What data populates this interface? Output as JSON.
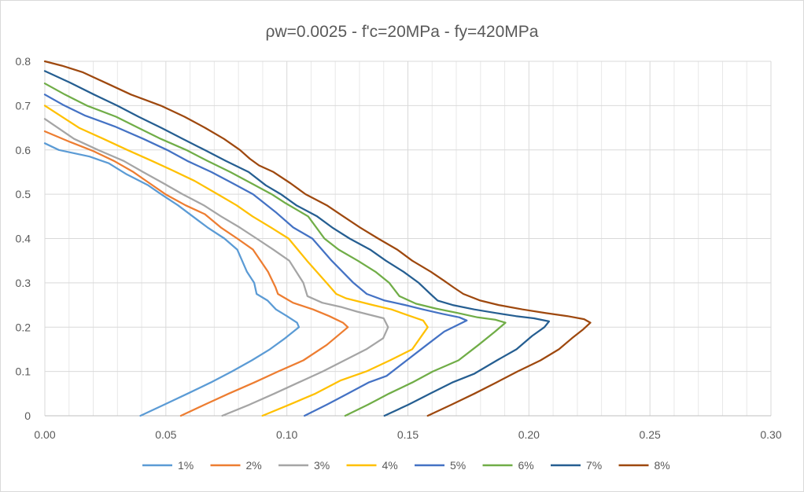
{
  "chart_data": {
    "type": "line",
    "title": "ρw=0.0025 - f'c=20MPa - fy=420MPa",
    "xlabel": "",
    "ylabel": "",
    "xlim": [
      0,
      0.3
    ],
    "ylim": [
      0,
      0.8
    ],
    "x_ticks": [
      "0.00",
      "0.05",
      "0.10",
      "0.15",
      "0.20",
      "0.25",
      "0.30"
    ],
    "y_ticks": [
      "0",
      "0.1",
      "0.2",
      "0.3",
      "0.4",
      "0.5",
      "0.6",
      "0.7",
      "0.8"
    ],
    "grid": true,
    "legend_position": "bottom",
    "series": [
      {
        "name": "1%",
        "color": "#5b9bd5",
        "points": [
          [
            0.0395,
            0
          ],
          [
            0.0493,
            0.025
          ],
          [
            0.059,
            0.05
          ],
          [
            0.0685,
            0.075
          ],
          [
            0.0773,
            0.1
          ],
          [
            0.0855,
            0.125
          ],
          [
            0.093,
            0.15
          ],
          [
            0.0993,
            0.175
          ],
          [
            0.105,
            0.2
          ],
          [
            0.1042,
            0.21
          ],
          [
            0.1,
            0.225
          ],
          [
            0.0955,
            0.24
          ],
          [
            0.092,
            0.26
          ],
          [
            0.0875,
            0.275
          ],
          [
            0.0865,
            0.3
          ],
          [
            0.0835,
            0.325
          ],
          [
            0.0795,
            0.375
          ],
          [
            0.0742,
            0.4
          ],
          [
            0.0672,
            0.425
          ],
          [
            0.0611,
            0.45
          ],
          [
            0.055,
            0.475
          ],
          [
            0.048,
            0.5
          ],
          [
            0.0427,
            0.52
          ],
          [
            0.0338,
            0.545
          ],
          [
            0.0264,
            0.57
          ],
          [
            0.0185,
            0.585
          ],
          [
            0.0058,
            0.6
          ],
          [
            0,
            0.615
          ]
        ]
      },
      {
        "name": "2%",
        "color": "#ed7d31",
        "points": [
          [
            0.0562,
            0
          ],
          [
            0.066,
            0.025
          ],
          [
            0.076,
            0.05
          ],
          [
            0.0865,
            0.075
          ],
          [
            0.0964,
            0.1
          ],
          [
            0.1068,
            0.125
          ],
          [
            0.1165,
            0.16
          ],
          [
            0.1252,
            0.2
          ],
          [
            0.1232,
            0.21
          ],
          [
            0.1175,
            0.225
          ],
          [
            0.1108,
            0.24
          ],
          [
            0.1025,
            0.255
          ],
          [
            0.0963,
            0.275
          ],
          [
            0.0953,
            0.29
          ],
          [
            0.0922,
            0.325
          ],
          [
            0.086,
            0.375
          ],
          [
            0.0795,
            0.4
          ],
          [
            0.0727,
            0.425
          ],
          [
            0.0661,
            0.455
          ],
          [
            0.0581,
            0.475
          ],
          [
            0.0498,
            0.5
          ],
          [
            0.0432,
            0.525
          ],
          [
            0.0366,
            0.55
          ],
          [
            0.0286,
            0.575
          ],
          [
            0.0198,
            0.598
          ],
          [
            0.0104,
            0.618
          ],
          [
            0,
            0.642
          ]
        ]
      },
      {
        "name": "3%",
        "color": "#a5a5a5",
        "points": [
          [
            0.0733,
            0
          ],
          [
            0.0845,
            0.025
          ],
          [
            0.0948,
            0.05
          ],
          [
            0.1048,
            0.075
          ],
          [
            0.1148,
            0.1
          ],
          [
            0.1238,
            0.125
          ],
          [
            0.1328,
            0.15
          ],
          [
            0.1398,
            0.175
          ],
          [
            0.1418,
            0.2
          ],
          [
            0.14,
            0.22
          ],
          [
            0.129,
            0.235
          ],
          [
            0.1228,
            0.245
          ],
          [
            0.1146,
            0.255
          ],
          [
            0.1085,
            0.27
          ],
          [
            0.1068,
            0.3
          ],
          [
            0.101,
            0.35
          ],
          [
            0.0944,
            0.375
          ],
          [
            0.0875,
            0.4
          ],
          [
            0.0805,
            0.425
          ],
          [
            0.0728,
            0.45
          ],
          [
            0.0657,
            0.475
          ],
          [
            0.0569,
            0.5
          ],
          [
            0.0489,
            0.525
          ],
          [
            0.0406,
            0.55
          ],
          [
            0.0326,
            0.575
          ],
          [
            0.022,
            0.6
          ],
          [
            0.0121,
            0.625
          ],
          [
            0,
            0.67
          ]
        ]
      },
      {
        "name": "4%",
        "color": "#ffc000",
        "points": [
          [
            0.0899,
            0
          ],
          [
            0.101,
            0.025
          ],
          [
            0.1118,
            0.05
          ],
          [
            0.1223,
            0.08
          ],
          [
            0.1328,
            0.1
          ],
          [
            0.1426,
            0.125
          ],
          [
            0.1518,
            0.15
          ],
          [
            0.1582,
            0.2
          ],
          [
            0.1563,
            0.215
          ],
          [
            0.151,
            0.225
          ],
          [
            0.1432,
            0.24
          ],
          [
            0.1355,
            0.25
          ],
          [
            0.1245,
            0.265
          ],
          [
            0.1204,
            0.275
          ],
          [
            0.1164,
            0.3
          ],
          [
            0.1083,
            0.35
          ],
          [
            0.1007,
            0.4
          ],
          [
            0.0934,
            0.425
          ],
          [
            0.0858,
            0.45
          ],
          [
            0.0792,
            0.475
          ],
          [
            0.0714,
            0.5
          ],
          [
            0.0619,
            0.53
          ],
          [
            0.0523,
            0.555
          ],
          [
            0.0443,
            0.575
          ],
          [
            0.0341,
            0.6
          ],
          [
            0.0242,
            0.625
          ],
          [
            0.0141,
            0.65
          ],
          [
            0,
            0.7
          ]
        ]
      },
      {
        "name": "5%",
        "color": "#4472c4",
        "points": [
          [
            0.1073,
            0
          ],
          [
            0.1165,
            0.025
          ],
          [
            0.1252,
            0.05
          ],
          [
            0.1337,
            0.075
          ],
          [
            0.1412,
            0.09
          ],
          [
            0.1495,
            0.125
          ],
          [
            0.1578,
            0.16
          ],
          [
            0.165,
            0.19
          ],
          [
            0.1743,
            0.215
          ],
          [
            0.1713,
            0.222
          ],
          [
            0.1642,
            0.23
          ],
          [
            0.1562,
            0.24
          ],
          [
            0.1489,
            0.25
          ],
          [
            0.1404,
            0.26
          ],
          [
            0.133,
            0.275
          ],
          [
            0.1275,
            0.3
          ],
          [
            0.1185,
            0.35
          ],
          [
            0.1105,
            0.4
          ],
          [
            0.1026,
            0.425
          ],
          [
            0.0953,
            0.46
          ],
          [
            0.086,
            0.5
          ],
          [
            0.0775,
            0.525
          ],
          [
            0.0688,
            0.55
          ],
          [
            0.0589,
            0.575
          ],
          [
            0.0505,
            0.6
          ],
          [
            0.0407,
            0.625
          ],
          [
            0.0289,
            0.653
          ],
          [
            0.0164,
            0.678
          ],
          [
            0.0074,
            0.702
          ],
          [
            0,
            0.725
          ]
        ]
      },
      {
        "name": "6%",
        "color": "#70ad47",
        "points": [
          [
            0.1241,
            0
          ],
          [
            0.1335,
            0.025
          ],
          [
            0.1422,
            0.05
          ],
          [
            0.1518,
            0.075
          ],
          [
            0.1603,
            0.1
          ],
          [
            0.1709,
            0.125
          ],
          [
            0.1792,
            0.16
          ],
          [
            0.186,
            0.19
          ],
          [
            0.1903,
            0.21
          ],
          [
            0.186,
            0.217
          ],
          [
            0.1788,
            0.222
          ],
          [
            0.1705,
            0.232
          ],
          [
            0.1616,
            0.242
          ],
          [
            0.1533,
            0.253
          ],
          [
            0.1465,
            0.27
          ],
          [
            0.1423,
            0.3
          ],
          [
            0.1366,
            0.325
          ],
          [
            0.1293,
            0.35
          ],
          [
            0.1214,
            0.375
          ],
          [
            0.1155,
            0.4
          ],
          [
            0.1088,
            0.45
          ],
          [
            0.0994,
            0.48
          ],
          [
            0.0937,
            0.5
          ],
          [
            0.0852,
            0.525
          ],
          [
            0.0766,
            0.55
          ],
          [
            0.0672,
            0.575
          ],
          [
            0.0584,
            0.6
          ],
          [
            0.0479,
            0.625
          ],
          [
            0.0386,
            0.65
          ],
          [
            0.0294,
            0.675
          ],
          [
            0.0174,
            0.7
          ],
          [
            0.0083,
            0.725
          ],
          [
            0,
            0.75
          ]
        ]
      },
      {
        "name": "7%",
        "color": "#255e91",
        "points": [
          [
            0.1403,
            0
          ],
          [
            0.1502,
            0.025
          ],
          [
            0.1592,
            0.05
          ],
          [
            0.1683,
            0.075
          ],
          [
            0.1775,
            0.095
          ],
          [
            0.1868,
            0.125
          ],
          [
            0.1949,
            0.15
          ],
          [
            0.2013,
            0.18
          ],
          [
            0.2064,
            0.2
          ],
          [
            0.2083,
            0.213
          ],
          [
            0.2021,
            0.22
          ],
          [
            0.1946,
            0.225
          ],
          [
            0.1862,
            0.232
          ],
          [
            0.1774,
            0.24
          ],
          [
            0.1685,
            0.25
          ],
          [
            0.1623,
            0.26
          ],
          [
            0.1593,
            0.275
          ],
          [
            0.1545,
            0.3
          ],
          [
            0.1482,
            0.325
          ],
          [
            0.1409,
            0.35
          ],
          [
            0.1344,
            0.375
          ],
          [
            0.1259,
            0.4
          ],
          [
            0.1187,
            0.425
          ],
          [
            0.1125,
            0.45
          ],
          [
            0.1039,
            0.475
          ],
          [
            0.0975,
            0.5
          ],
          [
            0.0913,
            0.52
          ],
          [
            0.0842,
            0.55
          ],
          [
            0.0748,
            0.575
          ],
          [
            0.066,
            0.6
          ],
          [
            0.057,
            0.625
          ],
          [
            0.0481,
            0.65
          ],
          [
            0.0387,
            0.675
          ],
          [
            0.0299,
            0.7
          ],
          [
            0.0203,
            0.725
          ],
          [
            0.0104,
            0.752
          ],
          [
            0,
            0.778
          ]
        ]
      },
      {
        "name": "8%",
        "color": "#9e480e",
        "points": [
          [
            0.1582,
            0
          ],
          [
            0.168,
            0.025
          ],
          [
            0.1775,
            0.05
          ],
          [
            0.1865,
            0.075
          ],
          [
            0.1953,
            0.1
          ],
          [
            0.2048,
            0.125
          ],
          [
            0.2124,
            0.15
          ],
          [
            0.2178,
            0.175
          ],
          [
            0.2224,
            0.195
          ],
          [
            0.2254,
            0.21
          ],
          [
            0.2228,
            0.218
          ],
          [
            0.2159,
            0.225
          ],
          [
            0.2068,
            0.232
          ],
          [
            0.1974,
            0.24
          ],
          [
            0.1875,
            0.25
          ],
          [
            0.1799,
            0.26
          ],
          [
            0.1729,
            0.275
          ],
          [
            0.1688,
            0.29
          ],
          [
            0.1649,
            0.305
          ],
          [
            0.1595,
            0.325
          ],
          [
            0.1518,
            0.35
          ],
          [
            0.1456,
            0.375
          ],
          [
            0.1377,
            0.4
          ],
          [
            0.1302,
            0.425
          ],
          [
            0.1233,
            0.45
          ],
          [
            0.1165,
            0.475
          ],
          [
            0.1077,
            0.5
          ],
          [
            0.1014,
            0.525
          ],
          [
            0.0945,
            0.55
          ],
          [
            0.0885,
            0.565
          ],
          [
            0.0847,
            0.58
          ],
          [
            0.0806,
            0.6
          ],
          [
            0.074,
            0.625
          ],
          [
            0.0662,
            0.65
          ],
          [
            0.0577,
            0.675
          ],
          [
            0.0479,
            0.7
          ],
          [
            0.0356,
            0.725
          ],
          [
            0.0257,
            0.75
          ],
          [
            0.0158,
            0.775
          ],
          [
            0.0071,
            0.79
          ],
          [
            0,
            0.8
          ]
        ]
      }
    ]
  }
}
